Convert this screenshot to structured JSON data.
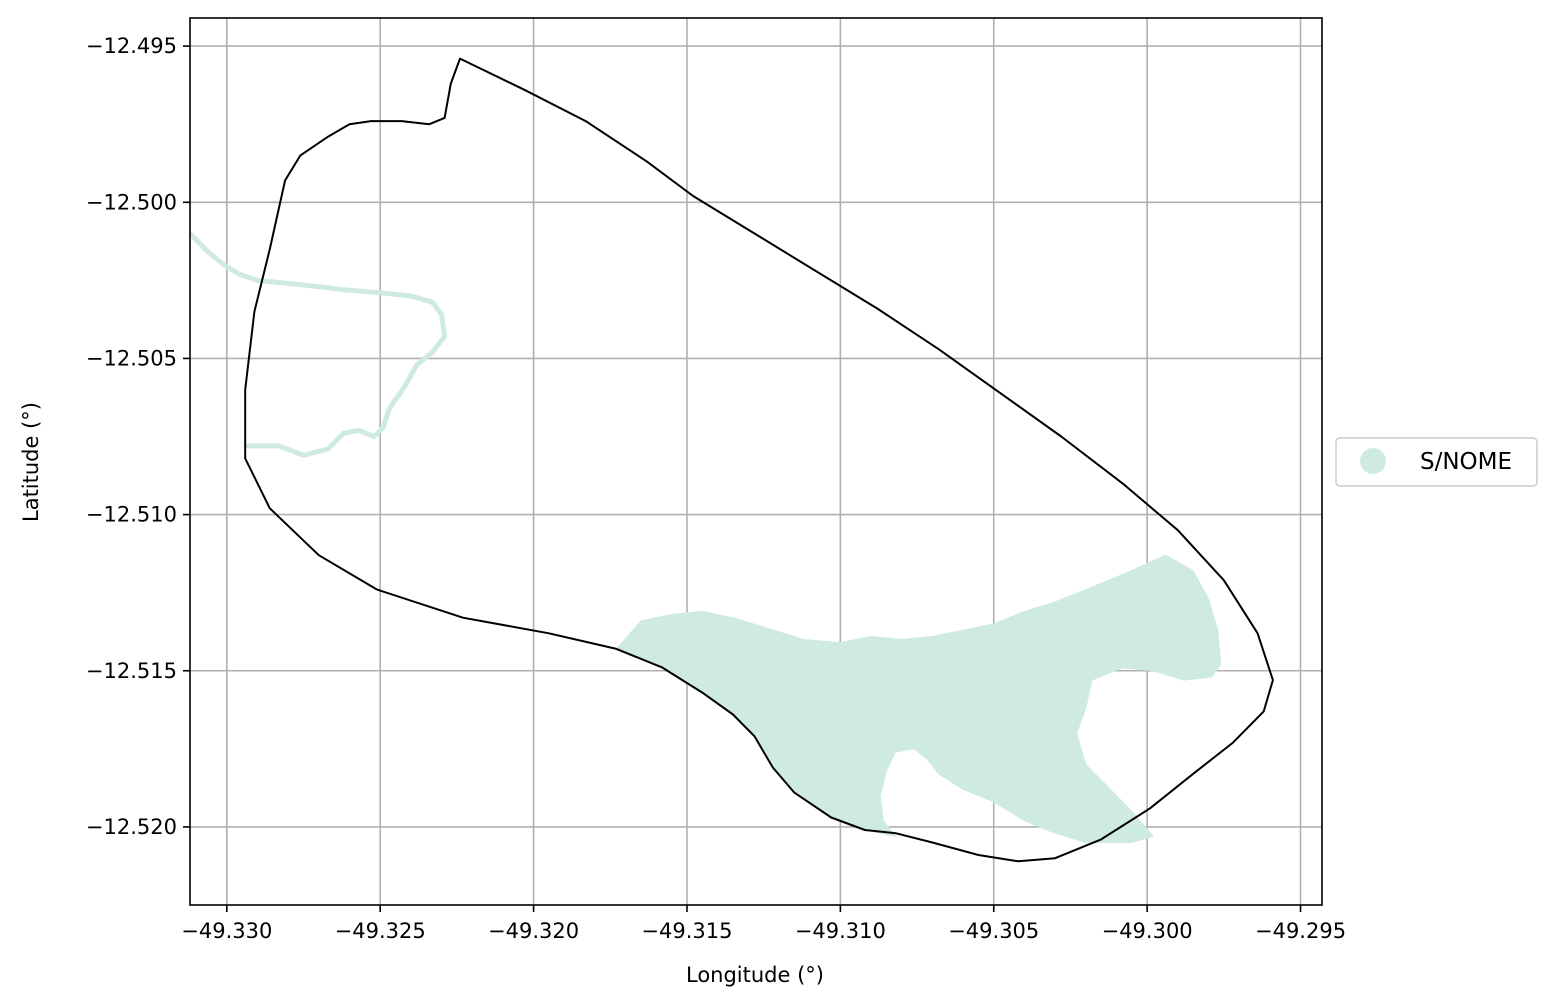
{
  "map": {
    "xlabel": "Longitude (°)",
    "ylabel": "Latitude (°)",
    "xlim": [
      -49.3312,
      -49.2943
    ],
    "ylim": [
      -12.5225,
      -12.4941
    ],
    "x_ticks": [
      {
        "value": -49.33,
        "label": "−49.330"
      },
      {
        "value": -49.325,
        "label": "−49.325"
      },
      {
        "value": -49.32,
        "label": "−49.320"
      },
      {
        "value": -49.315,
        "label": "−49.315"
      },
      {
        "value": -49.31,
        "label": "−49.310"
      },
      {
        "value": -49.305,
        "label": "−49.305"
      },
      {
        "value": -49.3,
        "label": "−49.300"
      },
      {
        "value": -49.295,
        "label": "−49.295"
      }
    ],
    "y_ticks": [
      {
        "value": -12.495,
        "label": "−12.495"
      },
      {
        "value": -12.5,
        "label": "−12.500"
      },
      {
        "value": -12.505,
        "label": "−12.505"
      },
      {
        "value": -12.51,
        "label": "−12.510"
      },
      {
        "value": -12.515,
        "label": "−12.515"
      },
      {
        "value": -12.52,
        "label": "−12.520"
      }
    ],
    "grid": true,
    "legend": {
      "placement": "right-outside",
      "entries": [
        {
          "label": "S/NOME",
          "color": "#cfebdf"
        }
      ]
    },
    "colors": {
      "fill": "#cfebdf",
      "boundary": "#000000",
      "grid": "#b0b0b0"
    },
    "boundary": [
      [
        -49.3224,
        -12.4954
      ],
      [
        -49.3203,
        -12.4964
      ],
      [
        -49.3183,
        -12.4974
      ],
      [
        -49.3163,
        -12.4987
      ],
      [
        -49.3148,
        -12.4998
      ],
      [
        -49.3128,
        -12.501
      ],
      [
        -49.3108,
        -12.5022
      ],
      [
        -49.3088,
        -12.5034
      ],
      [
        -49.3068,
        -12.5047
      ],
      [
        -49.3048,
        -12.5061
      ],
      [
        -49.3028,
        -12.5075
      ],
      [
        -49.3008,
        -12.509
      ],
      [
        -49.299,
        -12.5105
      ],
      [
        -49.2975,
        -12.5121
      ],
      [
        -49.2964,
        -12.5138
      ],
      [
        -49.2959,
        -12.5153
      ],
      [
        -49.2962,
        -12.5163
      ],
      [
        -49.2972,
        -12.5173
      ],
      [
        -49.2985,
        -12.5183
      ],
      [
        -49.2999,
        -12.5194
      ],
      [
        -49.3015,
        -12.5204
      ],
      [
        -49.303,
        -12.521
      ],
      [
        -49.3042,
        -12.5211
      ],
      [
        -49.3055,
        -12.5209
      ],
      [
        -49.307,
        -12.5205
      ],
      [
        -49.3082,
        -12.5202
      ],
      [
        -49.3092,
        -12.5201
      ],
      [
        -49.3103,
        -12.5197
      ],
      [
        -49.3115,
        -12.5189
      ],
      [
        -49.3122,
        -12.5181
      ],
      [
        -49.3128,
        -12.5171
      ],
      [
        -49.3135,
        -12.5164
      ],
      [
        -49.3145,
        -12.5157
      ],
      [
        -49.3158,
        -12.5149
      ],
      [
        -49.3173,
        -12.5143
      ],
      [
        -49.3195,
        -12.5138
      ],
      [
        -49.3223,
        -12.5133
      ],
      [
        -49.3251,
        -12.5124
      ],
      [
        -49.327,
        -12.5113
      ],
      [
        -49.3286,
        -12.5098
      ],
      [
        -49.3294,
        -12.5082
      ],
      [
        -49.3294,
        -12.506
      ],
      [
        -49.3291,
        -12.5035
      ],
      [
        -49.3286,
        -12.5015
      ],
      [
        -49.3281,
        -12.4993
      ],
      [
        -49.3276,
        -12.4985
      ],
      [
        -49.3267,
        -12.4979
      ],
      [
        -49.326,
        -12.4975
      ],
      [
        -49.3253,
        -12.4974
      ],
      [
        -49.3243,
        -12.4974
      ],
      [
        -49.3234,
        -12.4975
      ],
      [
        -49.3229,
        -12.4973
      ],
      [
        -49.3227,
        -12.4962
      ],
      [
        -49.3224,
        -12.4954
      ]
    ],
    "river": [
      [
        -49.3293,
        -12.5078
      ],
      [
        -49.3283,
        -12.5078
      ],
      [
        -49.3275,
        -12.5081
      ],
      [
        -49.3267,
        -12.5079
      ],
      [
        -49.3262,
        -12.5074
      ],
      [
        -49.3257,
        -12.5073
      ],
      [
        -49.3252,
        -12.5075
      ],
      [
        -49.3249,
        -12.5072
      ],
      [
        -49.3247,
        -12.5066
      ],
      [
        -49.3242,
        -12.5059
      ],
      [
        -49.3238,
        -12.5052
      ],
      [
        -49.3233,
        -12.5048
      ],
      [
        -49.3229,
        -12.5043
      ],
      [
        -49.323,
        -12.5036
      ],
      [
        -49.3233,
        -12.5032
      ],
      [
        -49.324,
        -12.503
      ],
      [
        -49.325,
        -12.5029
      ],
      [
        -49.3262,
        -12.5028
      ],
      [
        -49.327,
        -12.5027
      ],
      [
        -49.328,
        -12.5026
      ],
      [
        -49.329,
        -12.5025
      ],
      [
        -49.3296,
        -12.5023
      ],
      [
        -49.3301,
        -12.502
      ],
      [
        -49.3306,
        -12.5016
      ],
      [
        -49.3311,
        -12.5011
      ],
      [
        -49.3316,
        -12.5007
      ],
      [
        -49.3321,
        -12.5005
      ],
      [
        -49.3326,
        -12.5004
      ],
      [
        -49.3331,
        -12.5001
      ],
      [
        -49.3336,
        -12.4998
      ],
      [
        -49.3342,
        -12.4995
      ]
    ],
    "lake": [
      [
        -49.3173,
        -12.5143
      ],
      [
        -49.3165,
        -12.5134
      ],
      [
        -49.3155,
        -12.5132
      ],
      [
        -49.3145,
        -12.5131
      ],
      [
        -49.3135,
        -12.5133
      ],
      [
        -49.3125,
        -12.5136
      ],
      [
        -49.3112,
        -12.514
      ],
      [
        -49.31,
        -12.5141
      ],
      [
        -49.309,
        -12.5139
      ],
      [
        -49.308,
        -12.514
      ],
      [
        -49.307,
        -12.5139
      ],
      [
        -49.306,
        -12.5137
      ],
      [
        -49.305,
        -12.5135
      ],
      [
        -49.304,
        -12.5131
      ],
      [
        -49.303,
        -12.5128
      ],
      [
        -49.302,
        -12.5124
      ],
      [
        -49.301,
        -12.512
      ],
      [
        -49.3003,
        -12.5117
      ],
      [
        -49.2994,
        -12.5113
      ],
      [
        -49.2985,
        -12.5118
      ],
      [
        -49.298,
        -12.5127
      ],
      [
        -49.2977,
        -12.5137
      ],
      [
        -49.2976,
        -12.5148
      ],
      [
        -49.2979,
        -12.5152
      ],
      [
        -49.2988,
        -12.5153
      ],
      [
        -49.2998,
        -12.515
      ],
      [
        -49.3008,
        -12.5149
      ],
      [
        -49.3018,
        -12.5153
      ],
      [
        -49.302,
        -12.5162
      ],
      [
        -49.3023,
        -12.517
      ],
      [
        -49.302,
        -12.518
      ],
      [
        -49.3012,
        -12.5188
      ],
      [
        -49.3005,
        -12.5195
      ],
      [
        -49.2998,
        -12.5203
      ],
      [
        -49.3005,
        -12.5205
      ],
      [
        -49.302,
        -12.5205
      ],
      [
        -49.303,
        -12.5202
      ],
      [
        -49.304,
        -12.5198
      ],
      [
        -49.305,
        -12.5192
      ],
      [
        -49.306,
        -12.5188
      ],
      [
        -49.3068,
        -12.5183
      ],
      [
        -49.3072,
        -12.5178
      ],
      [
        -49.3076,
        -12.5175
      ],
      [
        -49.3082,
        -12.5176
      ],
      [
        -49.3085,
        -12.5182
      ],
      [
        -49.3087,
        -12.519
      ],
      [
        -49.3086,
        -12.5198
      ],
      [
        -49.3082,
        -12.5203
      ],
      [
        -49.3092,
        -12.5201
      ],
      [
        -49.3103,
        -12.5197
      ],
      [
        -49.3115,
        -12.5189
      ],
      [
        -49.3122,
        -12.5181
      ],
      [
        -49.3128,
        -12.5171
      ],
      [
        -49.3135,
        -12.5164
      ],
      [
        -49.3145,
        -12.5157
      ],
      [
        -49.3158,
        -12.5149
      ],
      [
        -49.3173,
        -12.5143
      ]
    ]
  }
}
